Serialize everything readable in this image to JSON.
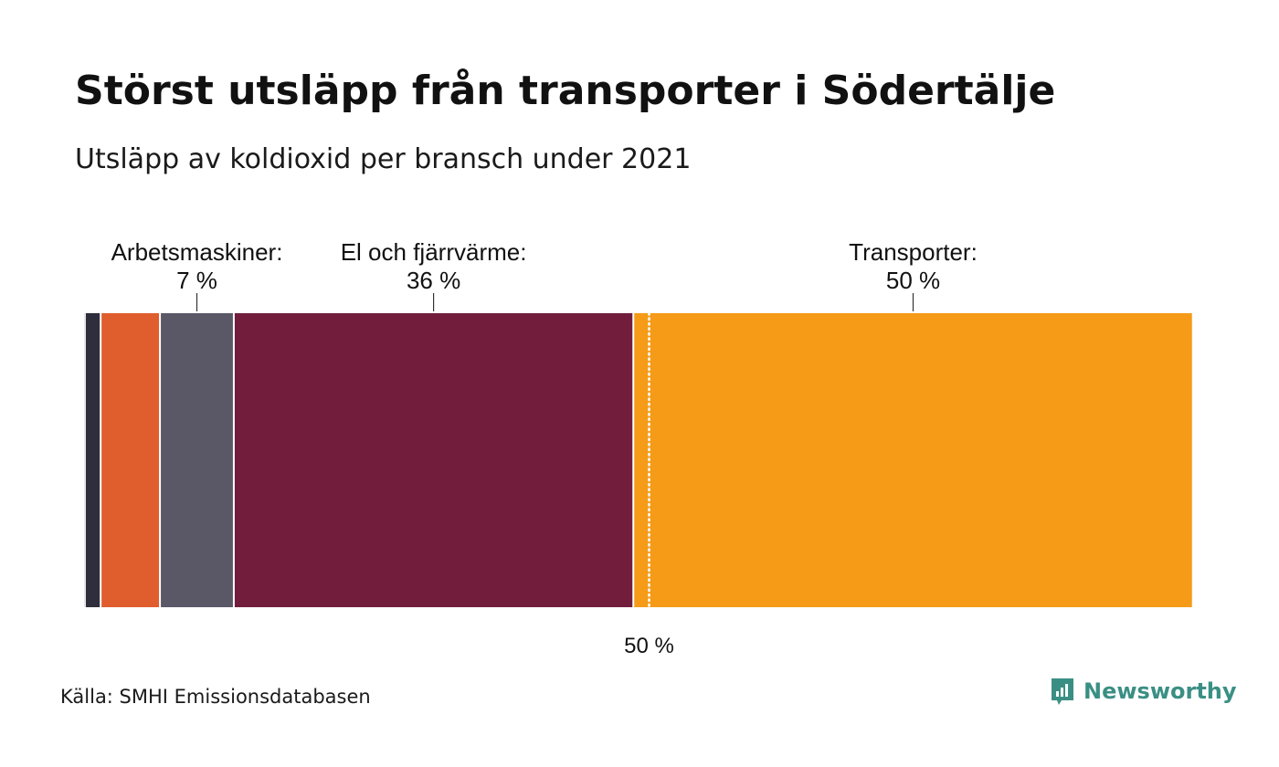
{
  "header": {
    "title": "Störst utsläpp från transporter i Södertälje",
    "subtitle": "Utsläpp av koldioxid per bransch under 2021"
  },
  "footer": {
    "source": "Källa: SMHI Emissionsdatabasen",
    "brand": "Newsworthy",
    "brand_color": "#3a8f84",
    "brand_icon": "bar-chart-speech-bubble-icon"
  },
  "chart_data": {
    "type": "bar",
    "orientation": "stacked-horizontal-100",
    "unit": "%",
    "segments": [
      {
        "value": 1.4,
        "color": "#2f2e3c",
        "label": "",
        "value_label": ""
      },
      {
        "value": 5.3,
        "color": "#e05d2e",
        "label": "",
        "value_label": ""
      },
      {
        "value": 6.6,
        "color": "#5a5867",
        "label": "Arbetsmaskiner:",
        "value_label": "7 %"
      },
      {
        "value": 35.7,
        "color": "#721d3c",
        "label": "El och fjärrvärme:",
        "value_label": "36 %"
      },
      {
        "value": 50.0,
        "color": "#f59b18",
        "label": "Transporter:",
        "value_label": "50 %"
      }
    ],
    "reference_line": {
      "value": 50,
      "label": "50 %",
      "style": "dotted",
      "color": "#ffffff"
    },
    "xlim": [
      0,
      100
    ],
    "legend": "none",
    "grid": false
  }
}
